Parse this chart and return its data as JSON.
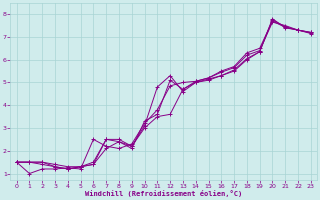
{
  "background_color": "#d0ecec",
  "grid_color": "#a8d4d4",
  "line_color": "#880088",
  "xlabel": "Windchill (Refroidissement éolien,°C)",
  "xlim": [
    -0.5,
    23.5
  ],
  "ylim": [
    0.7,
    8.5
  ],
  "xticks": [
    0,
    1,
    2,
    3,
    4,
    5,
    6,
    7,
    8,
    9,
    10,
    11,
    12,
    13,
    14,
    15,
    16,
    17,
    18,
    19,
    20,
    21,
    22,
    23
  ],
  "yticks": [
    1,
    2,
    3,
    4,
    5,
    6,
    7,
    8
  ],
  "lines": [
    {
      "x": [
        0,
        1,
        2,
        3,
        4,
        5,
        6,
        7,
        8,
        9,
        10,
        11,
        12,
        13,
        14,
        15,
        16,
        17,
        18,
        19,
        20,
        21,
        22,
        23
      ],
      "y": [
        1.5,
        1.5,
        1.5,
        1.3,
        1.2,
        1.3,
        1.5,
        2.5,
        2.5,
        2.2,
        3.0,
        3.5,
        3.6,
        4.7,
        5.0,
        5.1,
        5.3,
        5.5,
        6.0,
        6.35,
        7.8,
        7.4,
        7.3,
        7.2
      ]
    },
    {
      "x": [
        0,
        1,
        2,
        3,
        4,
        5,
        6,
        7,
        8,
        9,
        10,
        11,
        12,
        13,
        14,
        15,
        16,
        17,
        18,
        19,
        20,
        21,
        22,
        23
      ],
      "y": [
        1.5,
        1.5,
        1.4,
        1.3,
        1.2,
        1.3,
        1.4,
        2.1,
        2.4,
        2.2,
        3.1,
        4.8,
        5.3,
        4.6,
        5.0,
        5.15,
        5.3,
        5.55,
        6.05,
        6.35,
        7.75,
        7.45,
        7.3,
        7.15
      ]
    },
    {
      "x": [
        0,
        1,
        2,
        3,
        4,
        5,
        6,
        7,
        8,
        9,
        10,
        11,
        12,
        13,
        14,
        15,
        16,
        17,
        18,
        19,
        20,
        21,
        22,
        23
      ],
      "y": [
        1.5,
        1.0,
        1.2,
        1.2,
        1.25,
        1.2,
        2.5,
        2.2,
        2.1,
        2.3,
        3.2,
        3.8,
        4.85,
        5.0,
        5.05,
        5.2,
        5.45,
        5.65,
        6.2,
        6.4,
        7.65,
        7.5,
        7.3,
        7.2
      ]
    },
    {
      "x": [
        0,
        2,
        3,
        4,
        5,
        6,
        7,
        8,
        9,
        10,
        11,
        12,
        13,
        14,
        15,
        16,
        17,
        18,
        19,
        20,
        21,
        22,
        23
      ],
      "y": [
        1.5,
        1.5,
        1.4,
        1.3,
        1.3,
        1.4,
        2.5,
        2.4,
        2.1,
        3.3,
        3.6,
        5.1,
        4.7,
        5.05,
        5.2,
        5.5,
        5.7,
        6.3,
        6.5,
        7.7,
        7.42,
        7.3,
        7.18
      ]
    }
  ]
}
